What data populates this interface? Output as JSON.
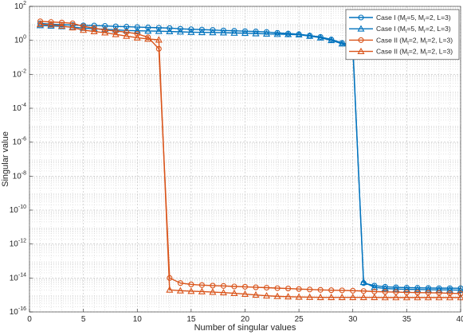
{
  "chart_data": {
    "type": "line",
    "xlabel": "Number of singular values",
    "ylabel": "Singular value",
    "xlim": [
      0,
      40
    ],
    "ylim_log10": [
      -16,
      2
    ],
    "yscale": "log",
    "xticks": [
      0,
      5,
      10,
      15,
      20,
      25,
      30,
      35,
      40
    ],
    "yticks_exponents": [
      -16,
      -14,
      -12,
      -10,
      -8,
      -6,
      -4,
      -2,
      0,
      2
    ],
    "ytick_base": "10",
    "grid": "on (major and minor)",
    "legend_position": "top-right",
    "legend": [
      {
        "prefix": "Case I (M",
        "s1": "t",
        "mid1": "=5, M",
        "s2": "r",
        "suffix": "=2, L=3)"
      },
      {
        "prefix": "Case I (M",
        "s1": "t",
        "mid1": "=5, M",
        "s2": "r",
        "suffix": "=2, L=3)"
      },
      {
        "prefix": "Case II (M",
        "s1": "t",
        "mid1": "=2, M",
        "s2": "r",
        "suffix": "=2, L=3)"
      },
      {
        "prefix": "Case II (M",
        "s1": "t",
        "mid1": "=2, M",
        "s2": "r",
        "suffix": "=2, L=3)"
      }
    ],
    "series": [
      {
        "color": "#0072BD",
        "marker": "circle",
        "x": [
          1,
          2,
          3,
          4,
          5,
          6,
          7,
          8,
          9,
          10,
          11,
          12,
          13,
          14,
          15,
          16,
          17,
          18,
          19,
          20,
          21,
          22,
          23,
          24,
          25,
          26,
          27,
          28,
          29,
          30,
          31,
          32,
          33,
          34,
          35,
          36,
          37,
          38,
          39,
          40
        ],
        "y_log10": [
          1.0,
          0.95,
          0.92,
          0.9,
          0.88,
          0.87,
          0.85,
          0.82,
          0.8,
          0.78,
          0.76,
          0.74,
          0.72,
          0.68,
          0.65,
          0.63,
          0.61,
          0.58,
          0.56,
          0.54,
          0.52,
          0.49,
          0.44,
          0.4,
          0.36,
          0.28,
          0.2,
          0.05,
          -0.15,
          -0.3,
          -14.3,
          -14.45,
          -14.52,
          -14.55,
          -14.57,
          -14.58,
          -14.59,
          -14.6,
          -14.6,
          -14.61
        ]
      },
      {
        "color": "#0072BD",
        "marker": "triangle",
        "x": [
          1,
          2,
          3,
          4,
          5,
          6,
          7,
          8,
          9,
          10,
          11,
          12,
          13,
          14,
          15,
          16,
          17,
          18,
          19,
          20,
          21,
          22,
          23,
          24,
          25,
          26,
          27,
          28,
          29,
          30,
          31,
          32,
          33,
          34,
          35,
          36,
          37,
          38,
          39,
          40
        ],
        "y_log10": [
          0.88,
          0.85,
          0.82,
          0.78,
          0.72,
          0.68,
          0.65,
          0.62,
          0.58,
          0.56,
          0.55,
          0.54,
          0.52,
          0.5,
          0.48,
          0.47,
          0.46,
          0.45,
          0.43,
          0.42,
          0.4,
          0.38,
          0.36,
          0.35,
          0.33,
          0.25,
          0.15,
          0.0,
          -0.2,
          -0.45,
          -14.25,
          -14.55,
          -14.62,
          -14.65,
          -14.67,
          -14.68,
          -14.69,
          -14.7,
          -14.7,
          -14.72
        ]
      },
      {
        "color": "#D95319",
        "marker": "circle",
        "x": [
          1,
          2,
          3,
          4,
          5,
          6,
          7,
          8,
          9,
          10,
          11,
          12,
          13,
          14,
          15,
          16,
          17,
          18,
          19,
          20,
          21,
          22,
          23,
          24,
          25,
          26,
          27,
          28,
          29,
          30,
          31,
          32,
          33,
          34,
          35,
          36,
          37,
          38,
          39,
          40
        ],
        "y_log10": [
          1.12,
          1.08,
          1.05,
          1.0,
          0.82,
          0.72,
          0.6,
          0.55,
          0.48,
          0.38,
          0.18,
          -0.5,
          -14.0,
          -14.3,
          -14.38,
          -14.42,
          -14.45,
          -14.47,
          -14.5,
          -14.52,
          -14.55,
          -14.57,
          -14.6,
          -14.62,
          -14.65,
          -14.68,
          -14.7,
          -14.72,
          -14.73,
          -14.75,
          -14.77,
          -14.8,
          -14.82,
          -14.83,
          -14.85,
          -14.86,
          -14.87,
          -14.88,
          -14.9,
          -14.92
        ]
      },
      {
        "color": "#D95319",
        "marker": "triangle",
        "x": [
          1,
          2,
          3,
          4,
          5,
          6,
          7,
          8,
          9,
          10,
          11,
          12,
          13,
          14,
          15,
          16,
          17,
          18,
          19,
          20,
          21,
          22,
          23,
          24,
          25,
          26,
          27,
          28,
          29,
          30,
          31,
          32,
          33,
          34,
          35,
          36,
          37,
          38,
          39,
          40
        ],
        "y_log10": [
          0.95,
          0.92,
          0.85,
          0.75,
          0.6,
          0.52,
          0.45,
          0.35,
          0.25,
          0.15,
          0.08,
          0.03,
          -14.7,
          -14.75,
          -14.78,
          -14.8,
          -14.83,
          -14.86,
          -14.9,
          -14.95,
          -15.0,
          -15.05,
          -15.08,
          -15.1,
          -15.12,
          -15.13,
          -15.14,
          -15.14,
          -15.14,
          -15.14,
          -15.14,
          -15.14,
          -15.15,
          -15.15,
          -15.15,
          -15.15,
          -15.15,
          -15.15,
          -15.15,
          -15.15
        ]
      }
    ]
  }
}
